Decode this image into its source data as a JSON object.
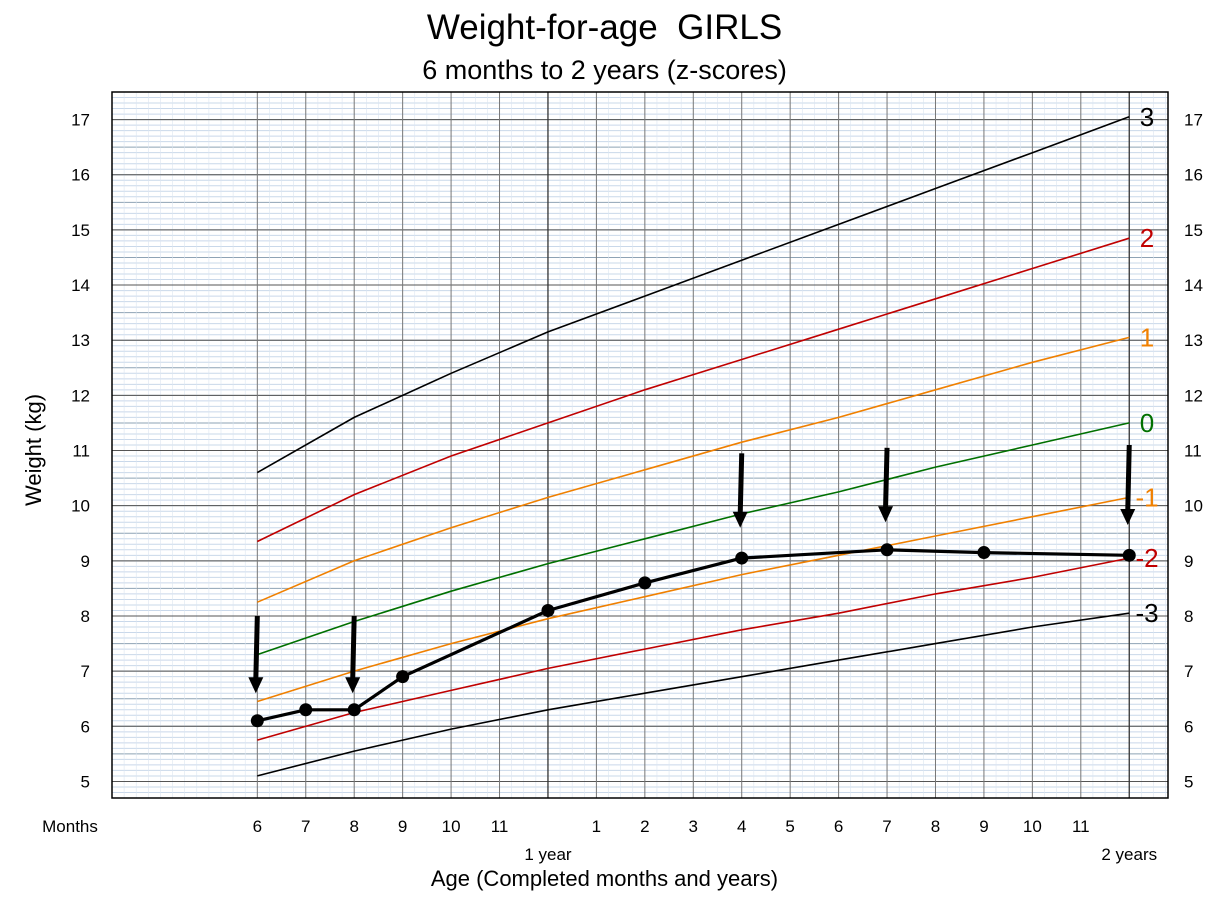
{
  "title": "Weight-for-age  GIRLS",
  "subtitle": "6 months to 2 years (z-scores)",
  "chart_data": {
    "type": "line",
    "title": "Weight-for-age  GIRLS",
    "subtitle": "6 months to 2 years (z-scores)",
    "xlabel": "Age (Completed months and years)",
    "ylabel": "Weight (kg)",
    "x_unit": "months",
    "xlim": [
      3,
      24.8
    ],
    "ylim": [
      4.7,
      17.5
    ],
    "grid": true,
    "x_axis_prefix": "Months",
    "x_ticks": [
      {
        "x": 6,
        "label": "6"
      },
      {
        "x": 7,
        "label": "7"
      },
      {
        "x": 8,
        "label": "8"
      },
      {
        "x": 9,
        "label": "9"
      },
      {
        "x": 10,
        "label": "10"
      },
      {
        "x": 11,
        "label": "11"
      },
      {
        "x": 13,
        "label": "1"
      },
      {
        "x": 14,
        "label": "2"
      },
      {
        "x": 15,
        "label": "3"
      },
      {
        "x": 16,
        "label": "4"
      },
      {
        "x": 17,
        "label": "5"
      },
      {
        "x": 18,
        "label": "6"
      },
      {
        "x": 19,
        "label": "7"
      },
      {
        "x": 20,
        "label": "8"
      },
      {
        "x": 21,
        "label": "9"
      },
      {
        "x": 22,
        "label": "10"
      },
      {
        "x": 23,
        "label": "11"
      }
    ],
    "x_year_labels": [
      {
        "x": 12,
        "label": "1 year"
      },
      {
        "x": 24,
        "label": "2 years"
      }
    ],
    "y_ticks": [
      5,
      6,
      7,
      8,
      9,
      10,
      11,
      12,
      13,
      14,
      15,
      16,
      17
    ],
    "curves": [
      {
        "name": "3",
        "color": "#000000",
        "x": [
          6,
          8,
          10,
          12,
          14,
          16,
          18,
          20,
          22,
          24
        ],
        "y": [
          10.6,
          11.6,
          12.4,
          13.15,
          13.8,
          14.45,
          15.1,
          15.75,
          16.4,
          17.05
        ]
      },
      {
        "name": "2",
        "color": "#c00000",
        "x": [
          6,
          8,
          10,
          12,
          14,
          16,
          18,
          20,
          22,
          24
        ],
        "y": [
          9.35,
          10.2,
          10.9,
          11.5,
          12.1,
          12.65,
          13.2,
          13.75,
          14.3,
          14.85
        ]
      },
      {
        "name": "1",
        "color": "#f08000",
        "x": [
          6,
          8,
          10,
          12,
          14,
          16,
          18,
          20,
          22,
          24
        ],
        "y": [
          8.25,
          9.0,
          9.6,
          10.15,
          10.65,
          11.15,
          11.6,
          12.1,
          12.6,
          13.05
        ]
      },
      {
        "name": "0",
        "color": "#007000",
        "x": [
          6,
          8,
          10,
          12,
          14,
          16,
          18,
          20,
          22,
          24
        ],
        "y": [
          7.3,
          7.9,
          8.45,
          8.95,
          9.4,
          9.85,
          10.25,
          10.7,
          11.1,
          11.5
        ]
      },
      {
        "name": "-1",
        "color": "#f08000",
        "x": [
          6,
          8,
          10,
          12,
          14,
          16,
          18,
          20,
          22,
          24
        ],
        "y": [
          6.45,
          7.0,
          7.5,
          7.95,
          8.35,
          8.75,
          9.1,
          9.45,
          9.8,
          10.15
        ]
      },
      {
        "name": "-2",
        "color": "#c00000",
        "x": [
          6,
          8,
          10,
          12,
          14,
          16,
          18,
          20,
          22,
          24
        ],
        "y": [
          5.75,
          6.25,
          6.65,
          7.05,
          7.4,
          7.75,
          8.05,
          8.4,
          8.7,
          9.05
        ]
      },
      {
        "name": "-3",
        "color": "#000000",
        "x": [
          6,
          8,
          10,
          12,
          14,
          16,
          18,
          20,
          22,
          24
        ],
        "y": [
          5.1,
          5.55,
          5.95,
          6.3,
          6.6,
          6.9,
          7.2,
          7.5,
          7.8,
          8.05
        ]
      }
    ],
    "series": [
      {
        "color": "#000000",
        "x": [
          6,
          7,
          8,
          9,
          12,
          14,
          16,
          19,
          21,
          24
        ],
        "y": [
          6.1,
          6.3,
          6.3,
          6.9,
          8.1,
          8.6,
          9.05,
          9.2,
          9.15,
          9.1
        ]
      }
    ],
    "arrows": [
      {
        "x": 6,
        "from": 8.0,
        "to": 6.6
      },
      {
        "x": 8,
        "from": 8.0,
        "to": 6.6
      },
      {
        "x": 16,
        "from": 10.95,
        "to": 9.6
      },
      {
        "x": 19,
        "from": 11.05,
        "to": 9.7
      },
      {
        "x": 24,
        "from": 11.1,
        "to": 9.65
      }
    ]
  }
}
